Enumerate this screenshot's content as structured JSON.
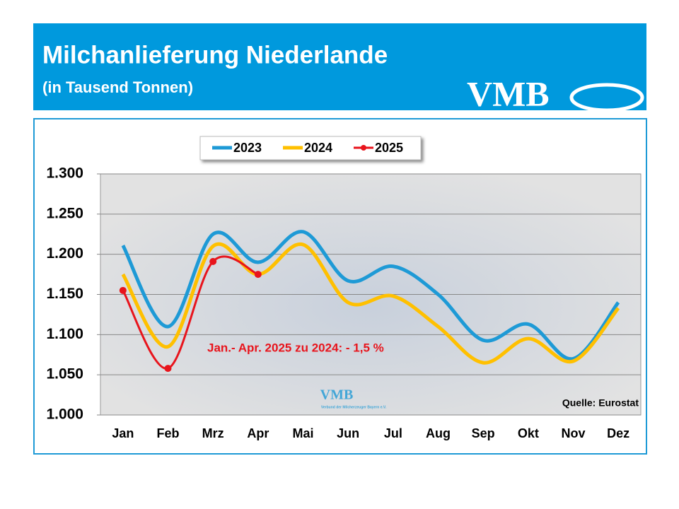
{
  "chart_data": {
    "type": "line",
    "title": "Milchanlieferung Niederlande",
    "subtitle": "(in Tausend Tonnen)",
    "logo": "VMB",
    "watermark": "VMB",
    "watermark_sub": "Verbund der Milcherzeuger Bayern e.V.",
    "annotation": "Jan.- Apr. 2025 zu 2024: - 1,5 %",
    "source": "Quelle: Eurostat",
    "categories": [
      "Jan",
      "Feb",
      "Mrz",
      "Apr",
      "Mai",
      "Jun",
      "Jul",
      "Aug",
      "Sep",
      "Okt",
      "Nov",
      "Dez"
    ],
    "series": [
      {
        "name": "2023",
        "color": "#1e9ad6",
        "values": [
          1211,
          1110,
          1225,
          1190,
          1228,
          1167,
          1185,
          1150,
          1093,
          1113,
          1070,
          1140
        ]
      },
      {
        "name": "2024",
        "color": "#ffc000",
        "values": [
          1175,
          1085,
          1210,
          1175,
          1212,
          1140,
          1148,
          1110,
          1065,
          1095,
          1067,
          1133
        ]
      },
      {
        "name": "2025",
        "color": "#e8141c",
        "values": [
          1155,
          1058,
          1191,
          1175,
          null,
          null,
          null,
          null,
          null,
          null,
          null,
          null
        ]
      }
    ],
    "ylim": [
      1000,
      1300
    ],
    "yticks": [
      {
        "value": 1000,
        "label": "1.000"
      },
      {
        "value": 1050,
        "label": "1.050"
      },
      {
        "value": 1100,
        "label": "1.100"
      },
      {
        "value": 1150,
        "label": "1.150"
      },
      {
        "value": 1200,
        "label": "1.200"
      },
      {
        "value": 1250,
        "label": "1.250"
      },
      {
        "value": 1300,
        "label": "1.300"
      }
    ],
    "grid": true
  }
}
